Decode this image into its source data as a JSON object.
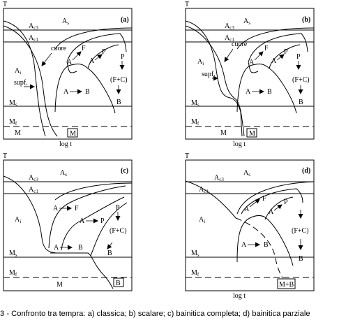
{
  "caption": "3 - Confronto tra tempra: a) classica; b) scalare; c) bainitica completa; d) bainitica parziale",
  "panels": [
    {
      "tag": "(a)",
      "axis": {
        "y": "T",
        "x": "log  t"
      },
      "levels": {
        "as": "A",
        "as_sub": "s",
        "ac3": "A",
        "ac3_sub": "c3",
        "ac1": "A",
        "ac1_sub": "c1",
        "ms": "M",
        "ms_sub": "s",
        "mf": "M",
        "mf_sub": "f",
        "m": "M"
      },
      "phase_labels": {
        "ai": "A",
        "ai_sub": "i",
        "a_f": "A",
        "f": "F",
        "a_p": "A",
        "p": "P",
        "p2": "P",
        "fc": "(F+C)",
        "a_b": "A",
        "b": "B",
        "b2": "B"
      },
      "annotations": {
        "cuore": "cuore",
        "supf": "supf."
      },
      "result_box": "M"
    },
    {
      "tag": "(b)",
      "axis": {
        "y": "T",
        "x": "log  t"
      },
      "levels": {
        "as": "A",
        "as_sub": "s",
        "ac3": "A",
        "ac3_sub": "c3",
        "ac1": "A",
        "ac1_sub": "c1",
        "ms": "M",
        "ms_sub": "s",
        "mf": "M",
        "mf_sub": "f",
        "m": "M"
      },
      "phase_labels": {
        "ai": "A",
        "ai_sub": "i",
        "a_f": "A",
        "f": "F",
        "a_p": "A",
        "p": "P",
        "p2": "P",
        "fc": "(F+C)",
        "a_b": "A",
        "b": "B",
        "b2": "B"
      },
      "annotations": {
        "cuore": "cuore",
        "supf": "supf."
      },
      "result_box": "M"
    },
    {
      "tag": "(c)",
      "axis": {
        "y": "T",
        "x": ""
      },
      "levels": {
        "as": "A",
        "as_sub": "s",
        "ac3": "A",
        "ac3_sub": "c3",
        "ac1": "A",
        "ac1_sub": "c1",
        "ms": "M",
        "ms_sub": "s",
        "mf": "M",
        "mf_sub": "f",
        "m": "M"
      },
      "phase_labels": {
        "ai": "A",
        "ai_sub": "i",
        "a_f": "A",
        "f": "F",
        "a_p": "A",
        "p": "P",
        "p2": "P",
        "fc": "(F+C)",
        "a_b": "A",
        "b": "B",
        "b2": "B"
      },
      "annotations": {
        "cuore": "",
        "supf": ""
      },
      "result_box": "B"
    },
    {
      "tag": "(d)",
      "axis": {
        "y": "T",
        "x": "log  t"
      },
      "levels": {
        "as": "A",
        "as_sub": "s",
        "ac3": "A",
        "ac3_sub": "c3",
        "ac1": "A",
        "ac1_sub": "c1",
        "ms": "M",
        "ms_sub": "s",
        "mf": "M",
        "mf_sub": "f",
        "m": ""
      },
      "phase_labels": {
        "ai": "A",
        "ai_sub": "i",
        "a_f": "A",
        "f": "F",
        "a_p": "A",
        "p": "P",
        "p2": "",
        "fc": "(F+C)",
        "a_b": "A",
        "b": "B",
        "b2": "B"
      },
      "annotations": {
        "cuore": "",
        "supf": ""
      },
      "result_box": "M+B"
    }
  ]
}
